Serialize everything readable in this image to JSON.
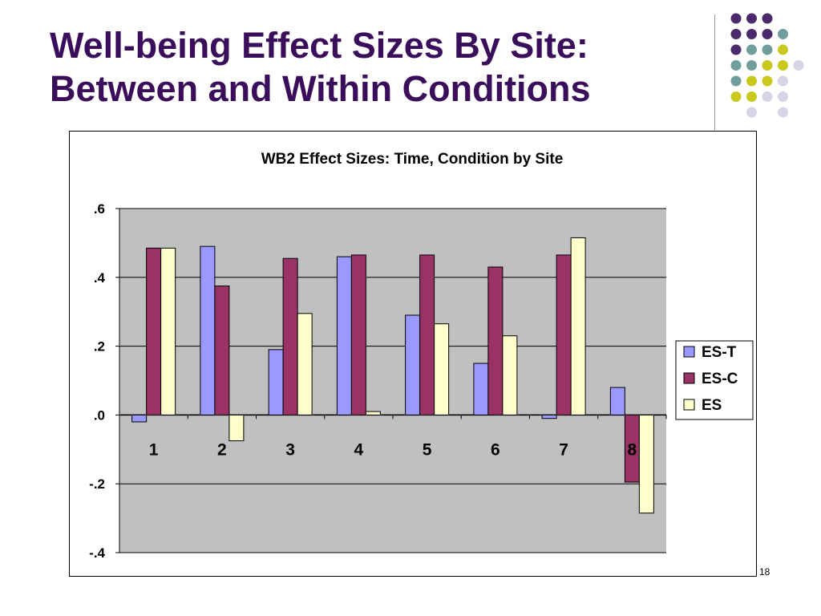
{
  "slide": {
    "title_line1": "Well-being Effect Sizes By Site:",
    "title_line2": "Between and Within Conditions",
    "slide_number": "18"
  },
  "decor": {
    "dot_colors": {
      "purple": "#4b2a6b",
      "teal": "#6f9e9c",
      "yellow": "#c9c81f",
      "lavender": "#d6d4e6"
    }
  },
  "chart_data": {
    "type": "bar",
    "title": "WB2 Effect Sizes: Time, Condition by Site",
    "categories": [
      "1",
      "2",
      "3",
      "4",
      "5",
      "6",
      "7",
      "8"
    ],
    "series": [
      {
        "name": "ES-T",
        "color": "#9999ff",
        "values": [
          -0.02,
          0.49,
          0.19,
          0.46,
          0.29,
          0.15,
          -0.01,
          0.08
        ]
      },
      {
        "name": "ES-C",
        "color": "#993366",
        "values": [
          0.485,
          0.375,
          0.455,
          0.465,
          0.465,
          0.43,
          0.465,
          -0.195
        ]
      },
      {
        "name": "ES",
        "color": "#ffffcc",
        "values": [
          0.485,
          -0.075,
          0.295,
          0.01,
          0.265,
          0.23,
          0.515,
          -0.285
        ]
      }
    ],
    "yticks": [
      ".6",
      ".4",
      ".2",
      ".0",
      "-.2",
      "-.4"
    ],
    "ylim": [
      -0.4,
      0.6
    ],
    "grid": true,
    "legend_position": "right",
    "plot_background": "#c0c0c0"
  }
}
